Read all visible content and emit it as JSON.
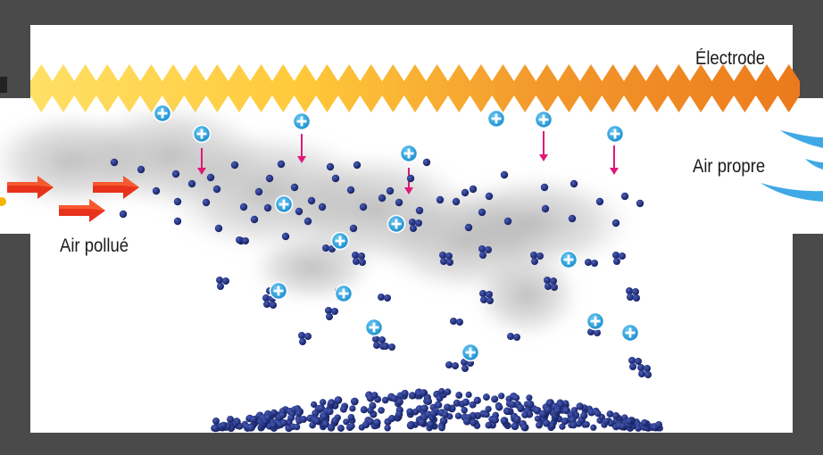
{
  "labels": {
    "electrode": "Électrode",
    "clean_air": "Air propre",
    "polluted_air": "Air pollué"
  },
  "colors": {
    "wall": "#4a4a4a",
    "electrode_left": "#ffd84a",
    "electrode_right": "#ef7a1e",
    "ion_fill": "#2aa3e0",
    "ion_plus": "#ffffff",
    "particle": "#1a2a7a",
    "force_arrow": "#e0187a",
    "airflow_arrow": "#e8331c",
    "clean_air_streak": "#3fa9e6",
    "smoke": "#9a9a9a"
  },
  "icons": {
    "ion": "plus-ion-icon",
    "particle": "dust-particle-icon",
    "force_arrow": "arrow-down-icon",
    "airflow": "arrow-right-icon"
  }
}
